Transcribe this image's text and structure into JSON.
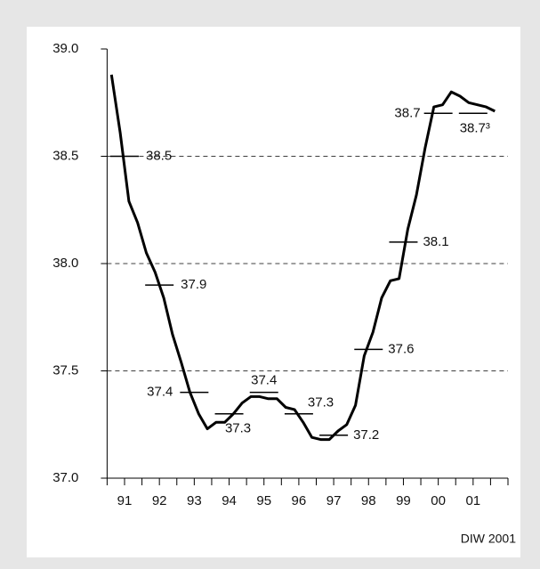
{
  "chart_data": {
    "type": "line",
    "x": [
      1991.125,
      1991.375,
      1991.625,
      1991.875,
      1992.125,
      1992.375,
      1992.625,
      1992.875,
      1993.125,
      1993.375,
      1993.625,
      1993.875,
      1994.125,
      1994.375,
      1994.625,
      1994.875,
      1995.125,
      1995.375,
      1995.625,
      1995.875,
      1996.125,
      1996.375,
      1996.625,
      1996.875,
      1997.125,
      1997.375,
      1997.625,
      1997.875,
      1998.125,
      1998.375,
      1998.625,
      1998.875,
      1999.125,
      1999.375,
      1999.625,
      1999.875,
      2000.125,
      2000.375,
      2000.625,
      2000.875,
      2001.125,
      2001.375,
      2001.625,
      2001.875,
      2002.125
    ],
    "values": [
      38.88,
      38.61,
      38.29,
      38.19,
      38.05,
      37.96,
      37.84,
      37.67,
      37.54,
      37.4,
      37.3,
      37.23,
      37.26,
      37.26,
      37.3,
      37.35,
      37.38,
      37.38,
      37.37,
      37.37,
      37.33,
      37.32,
      37.26,
      37.19,
      37.18,
      37.18,
      37.22,
      37.25,
      37.34,
      37.57,
      37.68,
      37.84,
      37.92,
      37.93,
      38.16,
      38.32,
      38.54,
      38.73,
      38.74,
      38.8,
      38.78,
      38.75,
      38.74,
      38.73,
      38.71
    ],
    "color": "#000000",
    "annual_averages": {
      "x": [
        1991.5,
        1992.5,
        1993.5,
        1994.5,
        1995.5,
        1996.5,
        1997.5,
        1998.5,
        1999.5,
        2000.5,
        2001.5
      ],
      "values": [
        38.5,
        37.9,
        37.4,
        37.3,
        37.4,
        37.3,
        37.2,
        37.6,
        38.1,
        38.7,
        38.7
      ],
      "value_labels": [
        "38.5",
        "37.9",
        "37.4",
        "37.3",
        "37.4",
        "37.3",
        "37.2",
        "37.6",
        "38.1",
        "38.7",
        "38.7³"
      ]
    },
    "xlim": [
      1991,
      2002.5
    ],
    "xticks": [
      {
        "value": 1991.5,
        "label": "91"
      },
      {
        "value": 1992.5,
        "label": "92"
      },
      {
        "value": 1993.5,
        "label": "93"
      },
      {
        "value": 1994.5,
        "label": "94"
      },
      {
        "value": 1995.5,
        "label": "95"
      },
      {
        "value": 1996.5,
        "label": "96"
      },
      {
        "value": 1997.5,
        "label": "97"
      },
      {
        "value": 1998.5,
        "label": "98"
      },
      {
        "value": 1999.5,
        "label": "99"
      },
      {
        "value": 2000.5,
        "label": "00"
      },
      {
        "value": 2001.5,
        "label": "01"
      }
    ],
    "xyearticks": [
      1991,
      1992,
      1993,
      1994,
      1995,
      1996,
      1997,
      1998,
      1999,
      2000,
      2001,
      2002,
      2002.5
    ],
    "ylim": [
      37,
      39
    ],
    "yticks": [
      {
        "value": 37,
        "label": "37.0"
      },
      {
        "value": 37.5,
        "label": "37.5"
      },
      {
        "value": 38,
        "label": "38.0"
      },
      {
        "value": 38.5,
        "label": "38.5"
      },
      {
        "value": 39,
        "label": "39.0"
      }
    ],
    "grid": true,
    "source": "DIW 2001"
  }
}
